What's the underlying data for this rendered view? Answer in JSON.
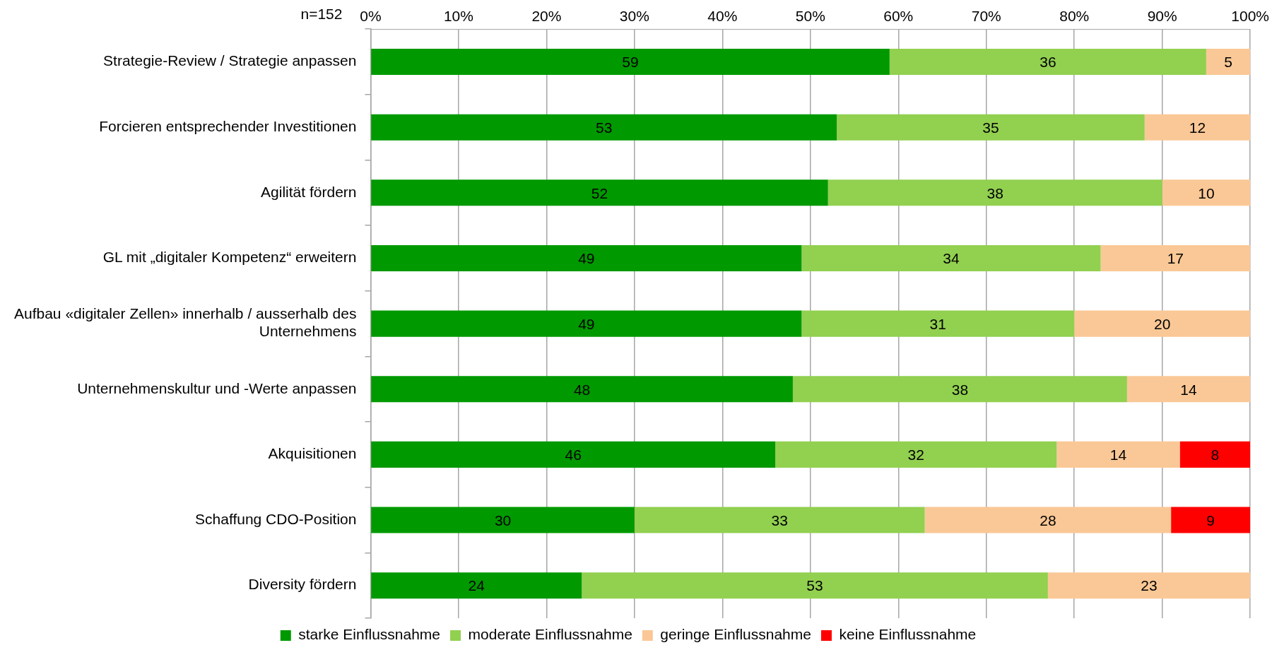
{
  "chart_data": {
    "type": "bar",
    "orientation": "horizontal",
    "stacked": true,
    "categories": [
      "Strategie-Review / Strategie anpassen",
      "Forcieren entsprechender Investitionen",
      "Agilität fördern",
      "GL mit „digitaler Kompetenz“ erweitern",
      "Aufbau «digitaler Zellen» innerhalb / ausserhalb des Unternehmens",
      "Unternehmenskultur und -Werte anpassen",
      "Akquisitionen",
      "Schaffung CDO-Position",
      "Diversity fördern"
    ],
    "series": [
      {
        "name": "starke Einflussnahme",
        "color": "#009900",
        "values": [
          59,
          53,
          52,
          49,
          49,
          48,
          46,
          30,
          24
        ]
      },
      {
        "name": "moderate Einflussnahme",
        "color": "#92d050",
        "values": [
          36,
          35,
          38,
          34,
          31,
          38,
          32,
          33,
          53
        ]
      },
      {
        "name": "geringe Einflussnahme",
        "color": "#fac896",
        "values": [
          5,
          12,
          10,
          17,
          20,
          14,
          14,
          28,
          23
        ]
      },
      {
        "name": "keine Einflussnahme",
        "color": "#ff0000",
        "values": [
          null,
          null,
          null,
          null,
          null,
          null,
          8,
          9,
          null
        ]
      }
    ],
    "xlim": [
      0,
      100
    ],
    "xticks": [
      {
        "value": 0,
        "label": "0%"
      },
      {
        "value": 10,
        "label": "10%"
      },
      {
        "value": 20,
        "label": "20%"
      },
      {
        "value": 30,
        "label": "30%"
      },
      {
        "value": 40,
        "label": "40%"
      },
      {
        "value": 50,
        "label": "50%"
      },
      {
        "value": 60,
        "label": "60%"
      },
      {
        "value": 70,
        "label": "70%"
      },
      {
        "value": 80,
        "label": "80%"
      },
      {
        "value": 90,
        "label": "90%"
      },
      {
        "value": 100,
        "label": "100%"
      }
    ],
    "grid": "x",
    "legend": "bottom",
    "data_labels": true,
    "annotations": [
      "n=152"
    ]
  }
}
